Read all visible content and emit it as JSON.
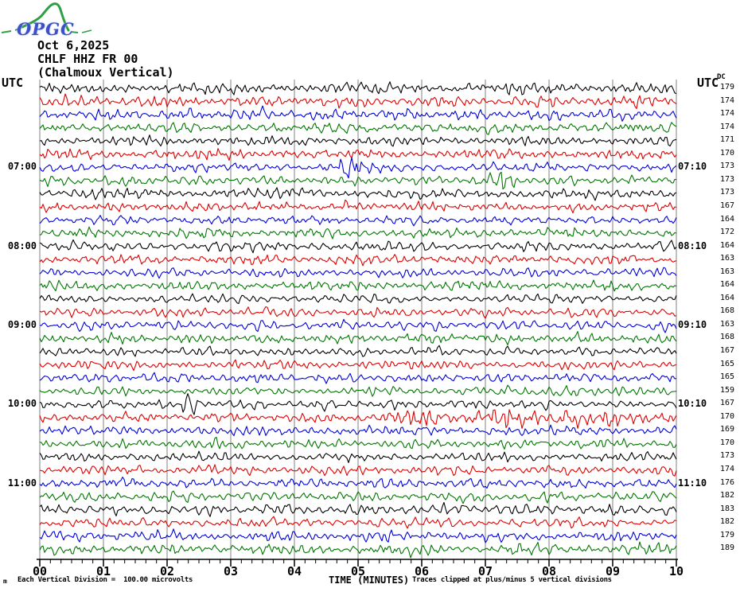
{
  "header": {
    "logo_text": "OPGC",
    "date": "Oct 6,2025",
    "station": "CHLF HHZ FR 00",
    "station_desc": "(Chalmoux Vertical)"
  },
  "axes": {
    "utc_left": "UTC",
    "utc_right": "UTC",
    "dc_header": "DC",
    "left_times": [
      {
        "row": 6,
        "label": "07:00"
      },
      {
        "row": 12,
        "label": "08:00"
      },
      {
        "row": 18,
        "label": "09:00"
      },
      {
        "row": 24,
        "label": "10:00"
      },
      {
        "row": 30,
        "label": "11:00"
      }
    ],
    "right_times": [
      {
        "row": 6,
        "label": "07:10"
      },
      {
        "row": 12,
        "label": "08:10"
      },
      {
        "row": 18,
        "label": "09:10"
      },
      {
        "row": 24,
        "label": "10:10"
      },
      {
        "row": 30,
        "label": "11:10"
      }
    ],
    "x_tick_labels": [
      "00",
      "01",
      "02",
      "03",
      "04",
      "05",
      "06",
      "07",
      "08",
      "09",
      "10"
    ],
    "x_axis_title": "TIME (MINUTES)"
  },
  "footer": {
    "corner_glyph": "m",
    "scale_note": "Each Vertical Division =  100.00 microvolts",
    "clip_note": "Traces clipped at plus/minus 5 vertical divisions"
  },
  "chart_data": {
    "type": "line",
    "title": "CHLF HHZ FR 00 (Chalmoux Vertical) helicorder, Oct 6,2025",
    "xlabel": "TIME (MINUTES)",
    "x_range_minutes": [
      0,
      10
    ],
    "minutes_per_row": 10,
    "vertical_division_microvolts": 100.0,
    "clip_divisions": 5,
    "grid_color": "#808080",
    "palette": {
      "black": "#000000",
      "red": "#e00000",
      "blue": "#0000dd",
      "green": "#007700"
    },
    "traces": [
      {
        "start": "06:00",
        "color": "black",
        "dc": 179,
        "amp": 1.1,
        "events": []
      },
      {
        "start": "06:10",
        "color": "red",
        "dc": 174,
        "amp": 1.2,
        "events": []
      },
      {
        "start": "06:20",
        "color": "blue",
        "dc": 174,
        "amp": 1.15,
        "events": []
      },
      {
        "start": "06:30",
        "color": "green",
        "dc": 174,
        "amp": 1.05,
        "events": []
      },
      {
        "start": "06:40",
        "color": "black",
        "dc": 171,
        "amp": 0.95,
        "events": []
      },
      {
        "start": "06:50",
        "color": "red",
        "dc": 170,
        "amp": 1.05,
        "events": []
      },
      {
        "start": "07:00",
        "color": "blue",
        "dc": 173,
        "amp": 1.0,
        "events": [
          {
            "type": "burst",
            "minute": 4.94,
            "width": 0.13,
            "gain": 3.4
          }
        ]
      },
      {
        "start": "07:10",
        "color": "green",
        "dc": 173,
        "amp": 1.0,
        "events": [
          {
            "type": "burst",
            "minute": 7.3,
            "width": 0.11,
            "gain": 3.2
          }
        ]
      },
      {
        "start": "07:20",
        "color": "black",
        "dc": 173,
        "amp": 1.05,
        "events": []
      },
      {
        "start": "07:30",
        "color": "red",
        "dc": 167,
        "amp": 0.95,
        "events": []
      },
      {
        "start": "07:40",
        "color": "blue",
        "dc": 164,
        "amp": 0.9,
        "events": []
      },
      {
        "start": "07:50",
        "color": "green",
        "dc": 172,
        "amp": 1.0,
        "events": []
      },
      {
        "start": "08:00",
        "color": "black",
        "dc": 164,
        "amp": 1.05,
        "events": []
      },
      {
        "start": "08:10",
        "color": "red",
        "dc": 163,
        "amp": 1.0,
        "events": []
      },
      {
        "start": "08:20",
        "color": "blue",
        "dc": 163,
        "amp": 0.92,
        "events": []
      },
      {
        "start": "08:30",
        "color": "green",
        "dc": 164,
        "amp": 0.95,
        "events": []
      },
      {
        "start": "08:40",
        "color": "black",
        "dc": 164,
        "amp": 0.9,
        "events": []
      },
      {
        "start": "08:50",
        "color": "red",
        "dc": 168,
        "amp": 0.95,
        "events": []
      },
      {
        "start": "09:00",
        "color": "blue",
        "dc": 163,
        "amp": 1.0,
        "events": []
      },
      {
        "start": "09:10",
        "color": "green",
        "dc": 168,
        "amp": 0.95,
        "events": []
      },
      {
        "start": "09:20",
        "color": "black",
        "dc": 167,
        "amp": 0.9,
        "events": []
      },
      {
        "start": "09:30",
        "color": "red",
        "dc": 165,
        "amp": 0.92,
        "events": []
      },
      {
        "start": "09:40",
        "color": "blue",
        "dc": 165,
        "amp": 0.95,
        "events": []
      },
      {
        "start": "09:50",
        "color": "green",
        "dc": 159,
        "amp": 0.9,
        "events": [
          {
            "type": "burst",
            "minute": 8.3,
            "width": 0.16,
            "gain": 2.3
          }
        ]
      },
      {
        "start": "10:00",
        "color": "black",
        "dc": 167,
        "amp": 0.92,
        "events": [
          {
            "type": "burst",
            "minute": 2.35,
            "width": 0.07,
            "gain": 3.2
          }
        ]
      },
      {
        "start": "10:10",
        "color": "red",
        "dc": 170,
        "amp": 1.0,
        "events": [
          {
            "type": "onset",
            "minute": 5.65,
            "gain": 2.0
          }
        ]
      },
      {
        "start": "10:20",
        "color": "blue",
        "dc": 169,
        "amp": 1.0,
        "events": []
      },
      {
        "start": "10:30",
        "color": "green",
        "dc": 170,
        "amp": 0.95,
        "events": []
      },
      {
        "start": "10:40",
        "color": "black",
        "dc": 173,
        "amp": 0.9,
        "events": []
      },
      {
        "start": "10:50",
        "color": "red",
        "dc": 174,
        "amp": 0.95,
        "events": []
      },
      {
        "start": "11:00",
        "color": "blue",
        "dc": 176,
        "amp": 1.0,
        "events": []
      },
      {
        "start": "11:10",
        "color": "green",
        "dc": 182,
        "amp": 1.05,
        "events": []
      },
      {
        "start": "11:20",
        "color": "black",
        "dc": 183,
        "amp": 1.1,
        "events": []
      },
      {
        "start": "11:30",
        "color": "red",
        "dc": 182,
        "amp": 1.0,
        "events": []
      },
      {
        "start": "11:40",
        "color": "blue",
        "dc": 179,
        "amp": 1.05,
        "events": []
      },
      {
        "start": "11:50",
        "color": "green",
        "dc": 189,
        "amp": 1.1,
        "events": []
      }
    ]
  }
}
